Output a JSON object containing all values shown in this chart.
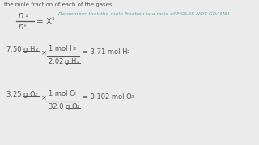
{
  "background_color": "#ebebeb",
  "text_color": "#555555",
  "reminder_color": "#5aabab",
  "top_text": "the mole fraction of each of the gases.",
  "reminder_text": "Remember that the mole fraction is a ratio of MOLES NOT GRAMS!"
}
